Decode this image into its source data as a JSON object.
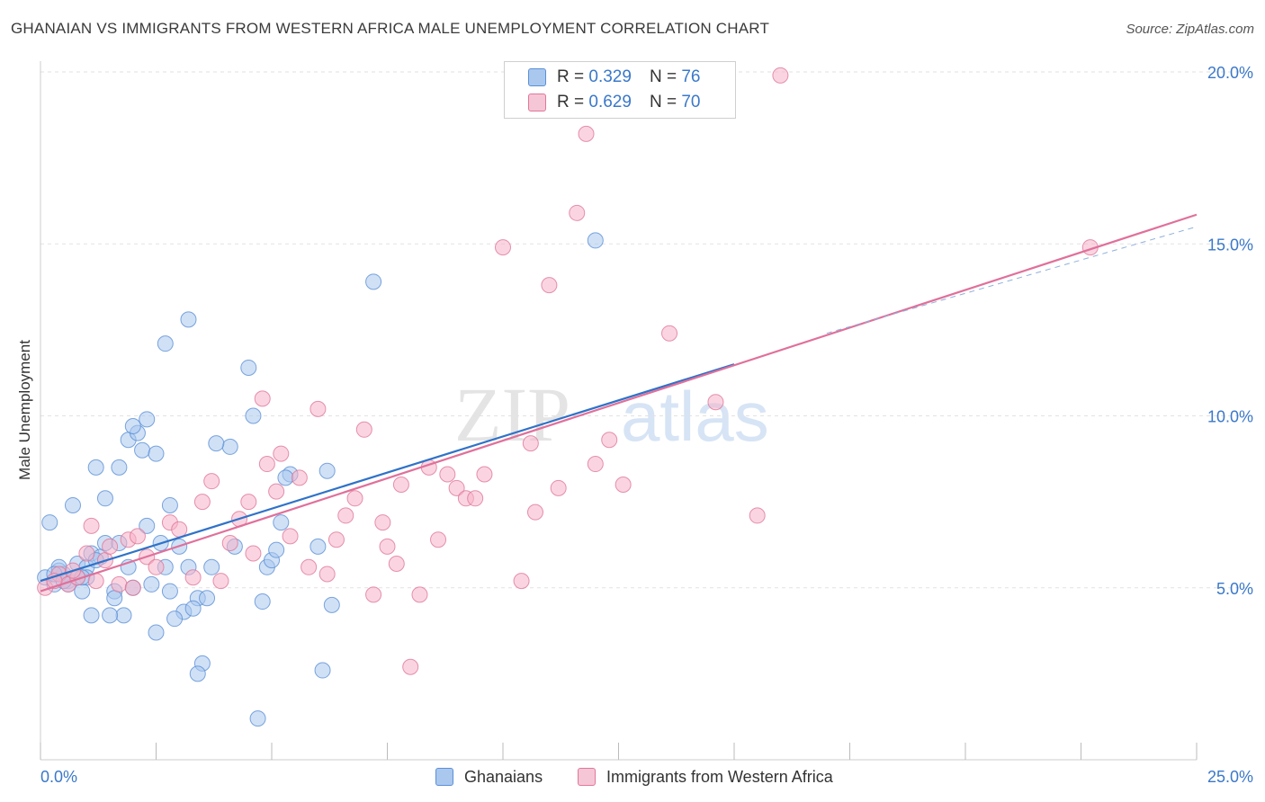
{
  "title": "GHANAIAN VS IMMIGRANTS FROM WESTERN AFRICA MALE UNEMPLOYMENT CORRELATION CHART",
  "source": "Source: ZipAtlas.com",
  "watermark": {
    "zip": "ZIP",
    "atlas": "atlas"
  },
  "legend": {
    "rows": [
      {
        "r_label": "R =",
        "r_value": "0.329",
        "n_label": "N =",
        "n_value": "76",
        "color": "#aac8ee"
      },
      {
        "r_label": "R =",
        "r_value": "0.629",
        "n_label": "N =",
        "n_value": "70",
        "color": "#f5b3c8"
      }
    ]
  },
  "bottom_legend": [
    {
      "label": "Ghanaians",
      "color": "#aac8ee"
    },
    {
      "label": "Immigrants from Western Africa",
      "color": "#f5b3c8"
    }
  ],
  "colors": {
    "blue_fill": "#aac8ee",
    "blue_stroke": "#5b8fd6",
    "blue_line": "#2f72c8",
    "pink_fill": "#f5b3c8",
    "pink_stroke": "#e07799",
    "pink_line": "#e0709a",
    "tick_label": "#3a78c9",
    "grid": "#e2e2e2"
  },
  "chart_data": {
    "type": "scatter",
    "title": "GHANAIAN VS IMMIGRANTS FROM WESTERN AFRICA MALE UNEMPLOYMENT CORRELATION CHART",
    "xlabel": "",
    "ylabel": "Male Unemployment",
    "xlim": [
      0,
      25
    ],
    "ylim": [
      0,
      20.5
    ],
    "x_tick_labels": [
      "0.0%",
      "25.0%"
    ],
    "y_ticks": [
      5,
      10,
      15,
      20
    ],
    "y_tick_labels": [
      "5.0%",
      "10.0%",
      "15.0%",
      "20.0%"
    ],
    "grid": "horizontal dashed",
    "legend_position": "top-center",
    "series": [
      {
        "name": "Ghanaians",
        "trend": {
          "x0": 0,
          "y0": 5.2,
          "x1": 15.0,
          "y1": 11.5
        },
        "points": [
          [
            0.1,
            5.3
          ],
          [
            0.3,
            5.1
          ],
          [
            0.4,
            5.5
          ],
          [
            0.6,
            5.2
          ],
          [
            0.8,
            5.7
          ],
          [
            0.9,
            4.9
          ],
          [
            1.0,
            5.6
          ],
          [
            0.2,
            6.9
          ],
          [
            0.5,
            5.4
          ],
          [
            0.7,
            7.4
          ],
          [
            1.1,
            6.0
          ],
          [
            1.3,
            5.9
          ],
          [
            1.4,
            7.6
          ],
          [
            1.2,
            8.5
          ],
          [
            1.7,
            8.5
          ],
          [
            1.9,
            9.3
          ],
          [
            2.1,
            9.5
          ],
          [
            2.2,
            9.0
          ],
          [
            2.3,
            9.9
          ],
          [
            2.0,
            9.7
          ],
          [
            2.5,
            8.9
          ],
          [
            2.3,
            6.8
          ],
          [
            2.6,
            6.3
          ],
          [
            2.8,
            7.4
          ],
          [
            3.0,
            6.2
          ],
          [
            3.2,
            5.6
          ],
          [
            3.4,
            4.7
          ],
          [
            3.1,
            4.3
          ],
          [
            2.9,
            4.1
          ],
          [
            2.5,
            3.7
          ],
          [
            1.9,
            5.6
          ],
          [
            1.6,
            4.9
          ],
          [
            1.8,
            4.2
          ],
          [
            1.6,
            4.7
          ],
          [
            1.1,
            4.2
          ],
          [
            2.0,
            5.0
          ],
          [
            2.4,
            5.1
          ],
          [
            2.7,
            5.6
          ],
          [
            3.6,
            4.7
          ],
          [
            3.3,
            4.4
          ],
          [
            3.5,
            2.8
          ],
          [
            3.4,
            2.5
          ],
          [
            4.7,
            1.2
          ],
          [
            4.8,
            4.6
          ],
          [
            4.9,
            5.6
          ],
          [
            5.0,
            5.8
          ],
          [
            5.1,
            6.1
          ],
          [
            5.2,
            6.9
          ],
          [
            5.4,
            8.3
          ],
          [
            5.3,
            8.2
          ],
          [
            6.0,
            6.2
          ],
          [
            6.2,
            8.4
          ],
          [
            6.3,
            4.5
          ],
          [
            6.1,
            2.6
          ],
          [
            4.2,
            6.2
          ],
          [
            4.5,
            11.4
          ],
          [
            4.6,
            10.0
          ],
          [
            4.1,
            9.1
          ],
          [
            3.8,
            9.2
          ],
          [
            3.2,
            12.8
          ],
          [
            2.7,
            12.1
          ],
          [
            7.2,
            13.9
          ],
          [
            12.0,
            15.1
          ],
          [
            1.5,
            4.2
          ],
          [
            1.0,
            5.3
          ],
          [
            0.6,
            5.1
          ],
          [
            0.8,
            5.3
          ],
          [
            1.4,
            6.3
          ],
          [
            1.7,
            6.3
          ],
          [
            0.4,
            5.6
          ],
          [
            0.9,
            5.3
          ],
          [
            1.2,
            5.8
          ],
          [
            3.7,
            5.6
          ],
          [
            2.8,
            4.9
          ],
          [
            0.3,
            5.4
          ],
          [
            0.5,
            5.2
          ]
        ]
      },
      {
        "name": "Immigrants from Western Africa",
        "trend": {
          "x0": 0,
          "y0": 4.9,
          "x1": 25.0,
          "y1": 15.85
        },
        "dashed_ext": {
          "x0": 17.0,
          "y0": 12.4,
          "x1": 25.0,
          "y1": 15.5
        },
        "points": [
          [
            0.1,
            5.0
          ],
          [
            0.4,
            5.4
          ],
          [
            0.6,
            5.1
          ],
          [
            0.8,
            5.3
          ],
          [
            1.0,
            6.0
          ],
          [
            1.1,
            6.8
          ],
          [
            1.4,
            5.8
          ],
          [
            1.5,
            6.2
          ],
          [
            1.7,
            5.1
          ],
          [
            1.9,
            6.4
          ],
          [
            2.1,
            6.5
          ],
          [
            2.3,
            5.9
          ],
          [
            2.5,
            5.6
          ],
          [
            2.8,
            6.9
          ],
          [
            3.0,
            6.7
          ],
          [
            3.3,
            5.3
          ],
          [
            3.5,
            7.5
          ],
          [
            3.7,
            8.1
          ],
          [
            3.9,
            5.2
          ],
          [
            4.1,
            6.3
          ],
          [
            4.3,
            7.0
          ],
          [
            4.5,
            7.5
          ],
          [
            4.6,
            6.0
          ],
          [
            4.8,
            10.5
          ],
          [
            4.9,
            8.6
          ],
          [
            5.1,
            7.8
          ],
          [
            5.2,
            8.9
          ],
          [
            5.4,
            6.5
          ],
          [
            5.6,
            8.2
          ],
          [
            5.8,
            5.6
          ],
          [
            6.0,
            10.2
          ],
          [
            6.2,
            5.4
          ],
          [
            6.4,
            6.4
          ],
          [
            6.6,
            7.1
          ],
          [
            6.8,
            7.6
          ],
          [
            7.0,
            9.6
          ],
          [
            7.2,
            4.8
          ],
          [
            7.4,
            6.9
          ],
          [
            7.5,
            6.2
          ],
          [
            7.7,
            5.7
          ],
          [
            7.8,
            8.0
          ],
          [
            8.0,
            2.7
          ],
          [
            8.2,
            4.8
          ],
          [
            8.4,
            8.5
          ],
          [
            8.6,
            6.4
          ],
          [
            8.8,
            8.3
          ],
          [
            9.0,
            7.9
          ],
          [
            9.2,
            7.6
          ],
          [
            9.4,
            7.6
          ],
          [
            9.6,
            8.3
          ],
          [
            10.0,
            14.9
          ],
          [
            10.4,
            5.2
          ],
          [
            10.7,
            7.2
          ],
          [
            11.0,
            13.8
          ],
          [
            11.2,
            7.9
          ],
          [
            11.6,
            15.9
          ],
          [
            11.8,
            18.2
          ],
          [
            12.0,
            8.6
          ],
          [
            12.3,
            9.3
          ],
          [
            12.6,
            8.0
          ],
          [
            10.6,
            9.2
          ],
          [
            13.6,
            12.4
          ],
          [
            14.6,
            10.4
          ],
          [
            15.5,
            7.1
          ],
          [
            16.0,
            19.9
          ],
          [
            22.7,
            14.9
          ],
          [
            0.3,
            5.2
          ],
          [
            0.7,
            5.5
          ],
          [
            1.2,
            5.2
          ],
          [
            2.0,
            5.0
          ]
        ]
      }
    ]
  }
}
